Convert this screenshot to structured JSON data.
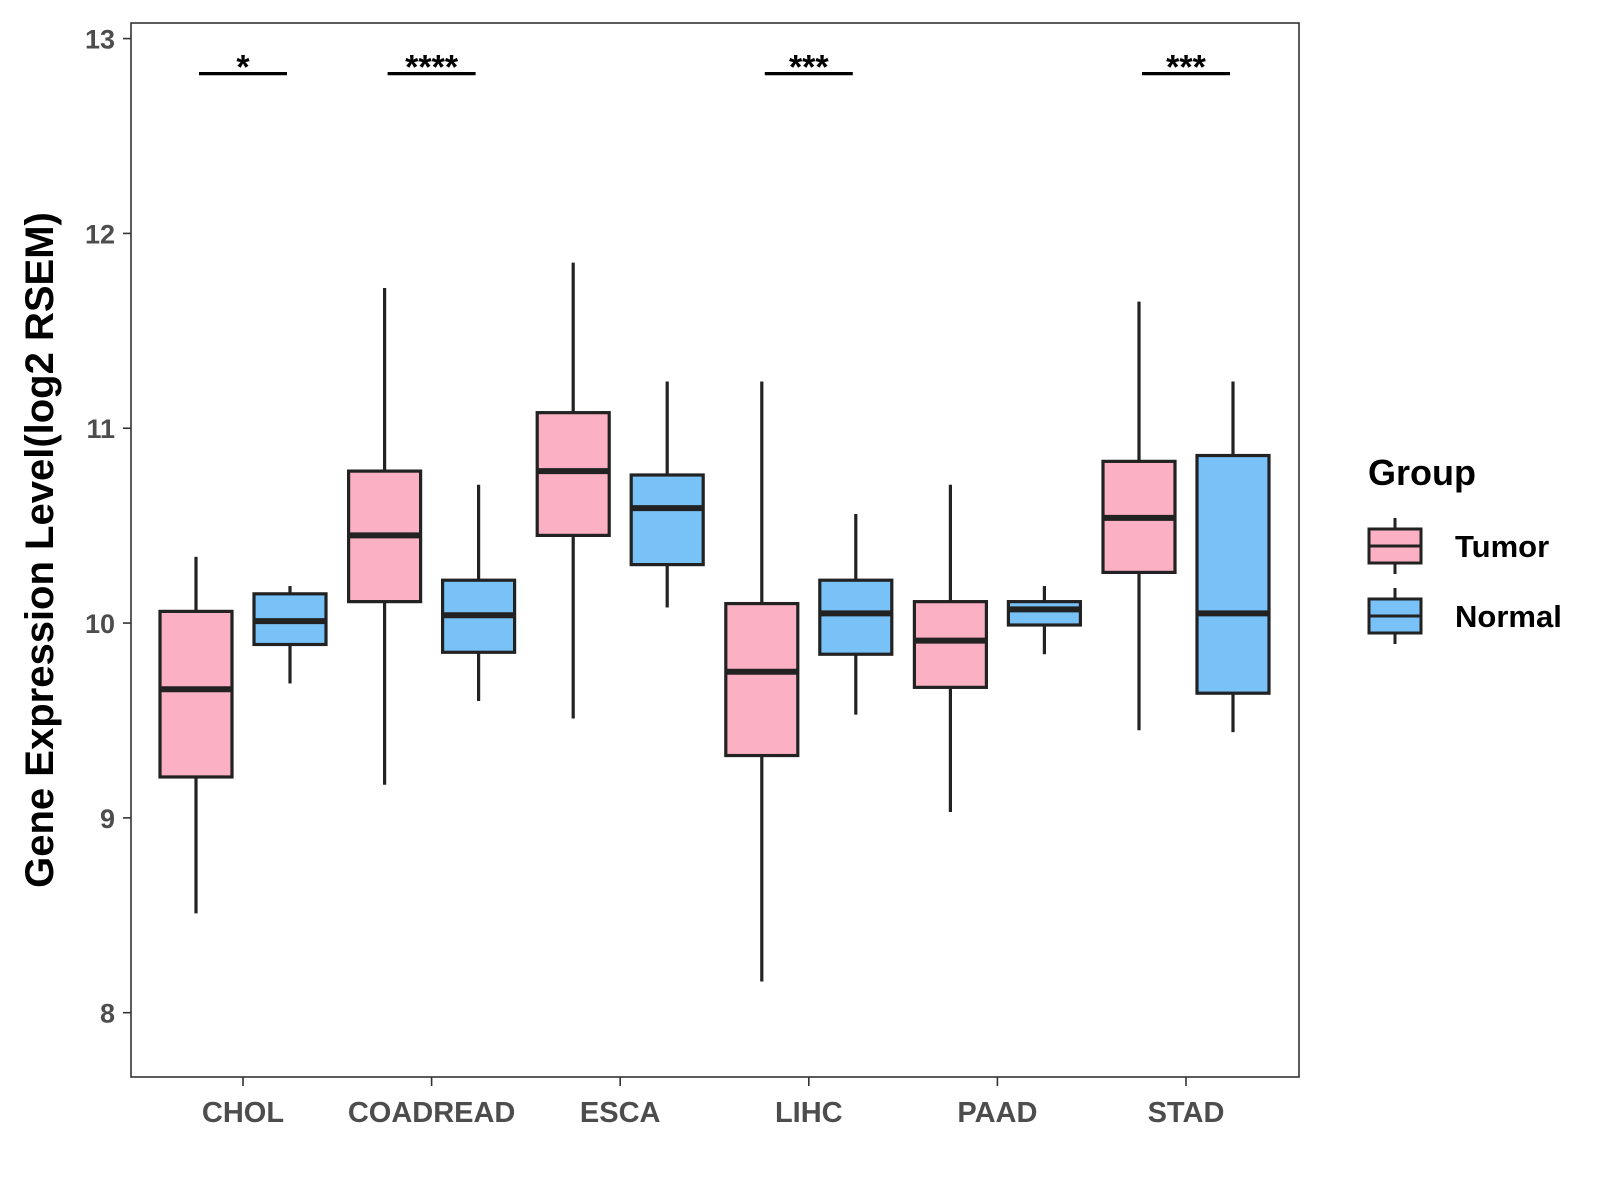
{
  "chart_data": {
    "type": "boxplot",
    "title": "",
    "xlabel": "",
    "ylabel": "Gene Expression Level(log2 RSEM)",
    "ylim": [
      7.67,
      13.08
    ],
    "yticks": [
      8,
      9,
      10,
      11,
      12,
      13
    ],
    "grid": false,
    "legend_position": "right",
    "legend_title": "Group",
    "categories": [
      "CHOL",
      "COADREAD",
      "ESCA",
      "LIHC",
      "PAAD",
      "STAD"
    ],
    "series": [
      {
        "name": "Tumor",
        "color": "#FBB1C3",
        "boxes": [
          {
            "whisker_low": 8.51,
            "q1": 9.21,
            "median": 9.66,
            "q3": 10.06,
            "whisker_high": 10.34
          },
          {
            "whisker_low": 9.17,
            "q1": 10.11,
            "median": 10.45,
            "q3": 10.78,
            "whisker_high": 11.72
          },
          {
            "whisker_low": 9.51,
            "q1": 10.45,
            "median": 10.78,
            "q3": 11.08,
            "whisker_high": 11.85
          },
          {
            "whisker_low": 8.16,
            "q1": 9.32,
            "median": 9.75,
            "q3": 10.1,
            "whisker_high": 11.24
          },
          {
            "whisker_low": 9.03,
            "q1": 9.67,
            "median": 9.91,
            "q3": 10.11,
            "whisker_high": 10.71
          },
          {
            "whisker_low": 9.45,
            "q1": 10.26,
            "median": 10.54,
            "q3": 10.83,
            "whisker_high": 11.65
          }
        ]
      },
      {
        "name": "Normal",
        "color": "#79C2F8",
        "boxes": [
          {
            "whisker_low": 9.69,
            "q1": 9.89,
            "median": 10.01,
            "q3": 10.15,
            "whisker_high": 10.19
          },
          {
            "whisker_low": 9.6,
            "q1": 9.85,
            "median": 10.04,
            "q3": 10.22,
            "whisker_high": 10.71
          },
          {
            "whisker_low": 10.08,
            "q1": 10.3,
            "median": 10.59,
            "q3": 10.76,
            "whisker_high": 11.24
          },
          {
            "whisker_low": 9.53,
            "q1": 9.84,
            "median": 10.05,
            "q3": 10.22,
            "whisker_high": 10.56
          },
          {
            "whisker_low": 9.84,
            "q1": 9.99,
            "median": 10.07,
            "q3": 10.11,
            "whisker_high": 10.19
          },
          {
            "whisker_low": 9.44,
            "q1": 9.64,
            "median": 10.05,
            "q3": 10.86,
            "whisker_high": 11.24
          }
        ]
      }
    ],
    "significance": [
      {
        "category": "CHOL",
        "label": "*",
        "y": 12.82
      },
      {
        "category": "COADREAD",
        "label": "****",
        "y": 12.82
      },
      {
        "category": "LIHC",
        "label": "***",
        "y": 12.82
      },
      {
        "category": "STAD",
        "label": "***",
        "y": 12.82
      }
    ]
  }
}
